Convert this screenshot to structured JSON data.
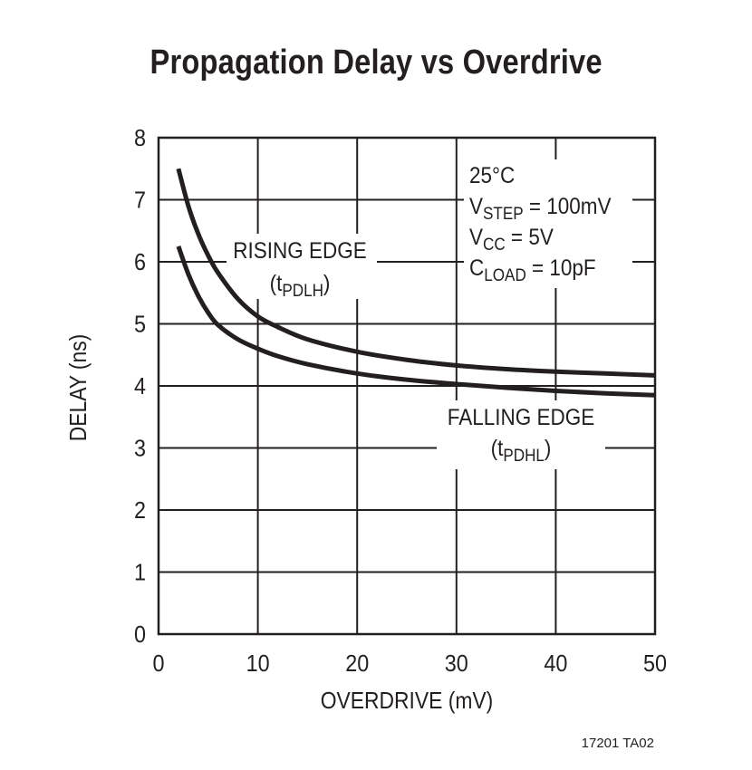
{
  "chart_data": {
    "type": "line",
    "title": "Propagation Delay vs Overdrive",
    "xlabel": "OVERDRIVE (mV)",
    "ylabel": "DELAY (ns)",
    "xlim": [
      0,
      50
    ],
    "ylim": [
      0,
      8
    ],
    "x_ticks": [
      "0",
      "10",
      "20",
      "30",
      "40",
      "50"
    ],
    "y_ticks": [
      "0",
      "1",
      "2",
      "3",
      "4",
      "5",
      "6",
      "7",
      "8"
    ],
    "grid": true,
    "series": [
      {
        "name": "RISING EDGE",
        "subscript_label": {
          "main": "(t",
          "sub": "PDLH",
          "end": ")"
        },
        "x": [
          2,
          3,
          4,
          5,
          6,
          8,
          10,
          12,
          15,
          20,
          25,
          30,
          35,
          40,
          45,
          50
        ],
        "y": [
          7.5,
          6.9,
          6.45,
          6.1,
          5.82,
          5.4,
          5.12,
          4.95,
          4.75,
          4.55,
          4.42,
          4.33,
          4.27,
          4.23,
          4.2,
          4.17
        ]
      },
      {
        "name": "FALLING EDGE",
        "subscript_label": {
          "main": "(t",
          "sub": "PDHL",
          "end": ")"
        },
        "x": [
          2,
          3,
          4,
          5,
          6,
          8,
          10,
          12,
          15,
          20,
          25,
          30,
          35,
          40,
          45,
          50
        ],
        "y": [
          6.25,
          5.8,
          5.45,
          5.18,
          4.98,
          4.75,
          4.6,
          4.48,
          4.35,
          4.2,
          4.1,
          4.03,
          3.97,
          3.92,
          3.88,
          3.85
        ]
      }
    ],
    "conditions": [
      {
        "main": "25°C",
        "sub": "",
        "rest": ""
      },
      {
        "main": "V",
        "sub": "STEP",
        "rest": " = 100mV"
      },
      {
        "main": "V",
        "sub": "CC",
        "rest": " = 5V"
      },
      {
        "main": "C",
        "sub": "LOAD",
        "rest": " = 10pF"
      }
    ],
    "figure_code": "17201 TA02"
  }
}
